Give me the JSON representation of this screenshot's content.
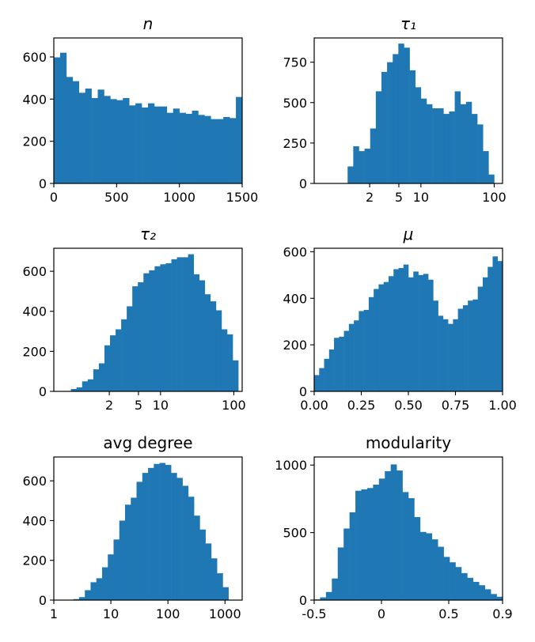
{
  "figure": {
    "bar_color": "#1f77b4"
  },
  "chart_data": [
    {
      "type": "bar",
      "title": "n",
      "title_italic": true,
      "x_scale": "linear",
      "xlim": [
        0,
        1500
      ],
      "ylim": [
        0,
        690
      ],
      "x_ticks": [
        {
          "value": 0,
          "label": "0"
        },
        {
          "value": 500,
          "label": "500"
        },
        {
          "value": 1000,
          "label": "1000"
        },
        {
          "value": 1500,
          "label": "1500"
        }
      ],
      "y_ticks": [
        {
          "value": 0,
          "label": "0"
        },
        {
          "value": 200,
          "label": "200"
        },
        {
          "value": 400,
          "label": "400"
        },
        {
          "value": 600,
          "label": "600"
        }
      ],
      "bins": {
        "start": 0,
        "end": 1500
      },
      "values": [
        598,
        620,
        505,
        485,
        430,
        450,
        405,
        445,
        415,
        400,
        395,
        405,
        370,
        380,
        360,
        380,
        365,
        365,
        335,
        355,
        335,
        330,
        345,
        325,
        320,
        305,
        305,
        315,
        310,
        410
      ]
    },
    {
      "type": "bar",
      "title": "τ₁",
      "title_italic": true,
      "x_scale": "log",
      "xlim": [
        0.35,
        130
      ],
      "ylim": [
        0,
        900
      ],
      "x_ticks": [
        {
          "value": 2,
          "label": "2"
        },
        {
          "value": 5,
          "label": "5"
        },
        {
          "value": 10,
          "label": "10"
        },
        {
          "value": 100,
          "label": "100"
        }
      ],
      "y_ticks": [
        {
          "value": 0,
          "label": "0"
        },
        {
          "value": 250,
          "label": "250"
        },
        {
          "value": 500,
          "label": "500"
        },
        {
          "value": 750,
          "label": "750"
        }
      ],
      "bins": {
        "start": 1.0,
        "end": 100
      },
      "values": [
        105,
        230,
        200,
        215,
        340,
        570,
        690,
        750,
        800,
        865,
        840,
        700,
        595,
        525,
        490,
        465,
        465,
        430,
        445,
        570,
        490,
        505,
        430,
        365,
        200,
        55
      ]
    },
    {
      "type": "bar",
      "title": "τ₂",
      "title_italic": true,
      "x_scale": "log",
      "xlim": [
        0.35,
        130
      ],
      "ylim": [
        0,
        715
      ],
      "x_ticks": [
        {
          "value": 2,
          "label": "2"
        },
        {
          "value": 5,
          "label": "5"
        },
        {
          "value": 10,
          "label": "10"
        },
        {
          "value": 100,
          "label": "100"
        }
      ],
      "y_ticks": [
        {
          "value": 0,
          "label": "0"
        },
        {
          "value": 200,
          "label": "200"
        },
        {
          "value": 400,
          "label": "400"
        },
        {
          "value": 600,
          "label": "600"
        }
      ],
      "bins": {
        "start": 0.6,
        "end": 115
      },
      "values": [
        12,
        20,
        50,
        60,
        110,
        140,
        230,
        280,
        310,
        360,
        425,
        525,
        545,
        590,
        605,
        625,
        635,
        640,
        660,
        670,
        670,
        685,
        585,
        555,
        485,
        450,
        405,
        310,
        285,
        155
      ]
    },
    {
      "type": "bar",
      "title": "μ",
      "title_italic": true,
      "x_scale": "linear",
      "xlim": [
        0,
        1
      ],
      "ylim": [
        0,
        615
      ],
      "x_ticks": [
        {
          "value": 0,
          "label": "0.00"
        },
        {
          "value": 0.25,
          "label": "0.25"
        },
        {
          "value": 0.5,
          "label": "0.50"
        },
        {
          "value": 0.75,
          "label": "0.75"
        },
        {
          "value": 1,
          "label": "1.00"
        }
      ],
      "y_ticks": [
        {
          "value": 0,
          "label": "0"
        },
        {
          "value": 200,
          "label": "200"
        },
        {
          "value": 400,
          "label": "400"
        },
        {
          "value": 600,
          "label": "600"
        }
      ],
      "bins": {
        "start": 0,
        "end": 1
      },
      "values": [
        70,
        100,
        140,
        180,
        230,
        235,
        260,
        290,
        305,
        345,
        350,
        405,
        440,
        460,
        470,
        495,
        525,
        530,
        545,
        490,
        515,
        500,
        505,
        480,
        390,
        325,
        310,
        290,
        310,
        355,
        370,
        390,
        395,
        450,
        490,
        535,
        580,
        560
      ]
    },
    {
      "type": "bar",
      "title": "avg degree",
      "title_italic": false,
      "x_scale": "log",
      "xlim": [
        1,
        2000
      ],
      "ylim": [
        0,
        720
      ],
      "x_ticks": [
        {
          "value": 1,
          "label": "1"
        },
        {
          "value": 10,
          "label": "10"
        },
        {
          "value": 100,
          "label": "100"
        },
        {
          "value": 1000,
          "label": "1000"
        }
      ],
      "y_ticks": [
        {
          "value": 0,
          "label": "0"
        },
        {
          "value": 200,
          "label": "200"
        },
        {
          "value": 400,
          "label": "400"
        },
        {
          "value": 600,
          "label": "600"
        }
      ],
      "bins": {
        "start": 2.2,
        "end": 1150
      },
      "values": [
        5,
        15,
        50,
        90,
        110,
        165,
        230,
        305,
        400,
        480,
        515,
        595,
        640,
        665,
        685,
        690,
        680,
        640,
        615,
        575,
        520,
        425,
        355,
        285,
        210,
        135,
        65
      ]
    },
    {
      "type": "bar",
      "title": "modularity",
      "title_italic": false,
      "x_scale": "linear",
      "xlim": [
        -0.5,
        0.9
      ],
      "ylim": [
        0,
        1060
      ],
      "x_ticks": [
        {
          "value": -0.5,
          "label": "-0.5"
        },
        {
          "value": 0,
          "label": "0"
        },
        {
          "value": 0.5,
          "label": "0.5"
        },
        {
          "value": 0.9,
          "label": "0.9"
        }
      ],
      "y_ticks": [
        {
          "value": 0,
          "label": "0"
        },
        {
          "value": 500,
          "label": "500"
        },
        {
          "value": 1000,
          "label": "1000"
        }
      ],
      "bins": {
        "start": -0.5,
        "end": 0.9
      },
      "values": [
        5,
        20,
        60,
        160,
        390,
        530,
        650,
        810,
        820,
        830,
        855,
        900,
        955,
        1005,
        960,
        800,
        755,
        615,
        505,
        495,
        450,
        395,
        320,
        280,
        245,
        200,
        165,
        135,
        110,
        80,
        45,
        25
      ]
    }
  ]
}
